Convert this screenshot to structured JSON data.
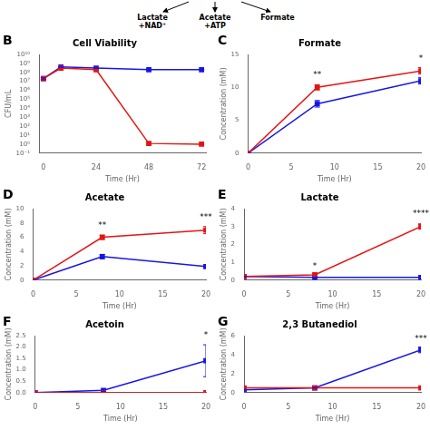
{
  "annotations": [
    "Lactate\n+NAD⁺",
    "Acetate\n+ATP",
    "Formate"
  ],
  "chart_data": [
    {
      "type": "line",
      "title": "Cell Viability",
      "x_label": "Time (Hr)",
      "y_label": "CFU/mL",
      "x": [
        0,
        8,
        24,
        48,
        72
      ],
      "series": [
        {
          "color": "#e61414",
          "marker": "square",
          "values": [
            20000000.0,
            300000000.0,
            200000000.0,
            1.2,
            1.0
          ],
          "errors": [
            5000000.0,
            40000000.0,
            30000000.0,
            0.3,
            0.2
          ]
        },
        {
          "color": "#1616e8",
          "marker": "square",
          "values": [
            20000000.0,
            400000000.0,
            300000000.0,
            200000000.0,
            200000000.0
          ],
          "errors": [
            5000000.0,
            30000000.0,
            30000000.0,
            20000000.0,
            20000000.0
          ]
        }
      ],
      "log": "y",
      "xlim": [
        -2,
        74
      ],
      "xticks": [
        0,
        24,
        48,
        72
      ],
      "ylim": [
        0.1,
        10000000000.0
      ],
      "yticks": [
        {
          "value": 0.1,
          "label": "10⁻¹"
        },
        {
          "value": 1,
          "label": "10⁰"
        },
        {
          "value": 10,
          "label": "10¹"
        },
        {
          "value": 100,
          "label": "10²"
        },
        {
          "value": 1000,
          "label": "10³"
        },
        {
          "value": 10000,
          "label": "10⁴"
        },
        {
          "value": 100000,
          "label": "10⁵"
        },
        {
          "value": 1000000,
          "label": "10⁶"
        },
        {
          "value": 10000000,
          "label": "10⁷"
        },
        {
          "value": 100000000,
          "label": "10⁸"
        },
        {
          "value": 1000000000,
          "label": "10⁹"
        },
        {
          "value": 10000000000,
          "label": "10¹⁰"
        }
      ],
      "grid": false,
      "annotations": [
        {
          "text": "B"
        }
      ]
    },
    {
      "type": "line",
      "title": "Formate",
      "x_label": "Time (Hr)",
      "y_label": "Concentration (mM)",
      "x": [
        0,
        8,
        20
      ],
      "series": [
        {
          "color": "#e61414",
          "marker": "square",
          "values": [
            0,
            10.0,
            12.5
          ],
          "errors": [
            0,
            0.4,
            0.5
          ]
        },
        {
          "color": "#1616e8",
          "marker": "square",
          "values": [
            0,
            7.5,
            11.0
          ],
          "errors": [
            0,
            0.5,
            0.5
          ]
        }
      ],
      "xlim": [
        0,
        20
      ],
      "xticks": [
        0,
        5,
        10,
        15,
        20
      ],
      "ylim": [
        0,
        15
      ],
      "yticks": [
        0,
        5,
        10,
        15
      ],
      "grid": false,
      "annotations": [
        {
          "text": "C"
        },
        {
          "text": "**",
          "x": 8,
          "y": 11.2
        },
        {
          "text": "*",
          "x": 20,
          "y": 13.8
        }
      ]
    },
    {
      "type": "line",
      "title": "Acetate",
      "x_label": "Time (Hr)",
      "y_label": "Concentration (mM)",
      "x": [
        0,
        8,
        20
      ],
      "series": [
        {
          "color": "#e61414",
          "marker": "square",
          "values": [
            0,
            6.0,
            7.0
          ],
          "errors": [
            0,
            0.3,
            0.5
          ]
        },
        {
          "color": "#1616e8",
          "marker": "square",
          "values": [
            0,
            3.3,
            1.9
          ],
          "errors": [
            0,
            0.3,
            0.2
          ]
        }
      ],
      "xlim": [
        0,
        20
      ],
      "xticks": [
        0,
        5,
        10,
        15,
        20
      ],
      "ylim": [
        0,
        10
      ],
      "yticks": [
        0,
        2,
        4,
        6,
        8,
        10
      ],
      "grid": false,
      "annotations": [
        {
          "text": "D"
        },
        {
          "text": "**",
          "x": 8,
          "y": 7.0
        },
        {
          "text": "***",
          "x": 20,
          "y": 8.2
        }
      ]
    },
    {
      "type": "line",
      "title": "Lactate",
      "x_label": "Time (Hr)",
      "y_label": "Concentration (mM)",
      "x": [
        0,
        8,
        20
      ],
      "series": [
        {
          "color": "#e61414",
          "marker": "square",
          "values": [
            0.2,
            0.3,
            3.0
          ],
          "errors": [
            0.02,
            0.05,
            0.15
          ]
        },
        {
          "color": "#1616e8",
          "marker": "square",
          "values": [
            0.2,
            0.15,
            0.15
          ],
          "errors": [
            0.02,
            0.02,
            0.02
          ]
        }
      ],
      "xlim": [
        0,
        20
      ],
      "xticks": [
        0,
        5,
        10,
        15,
        20
      ],
      "ylim": [
        0,
        4
      ],
      "yticks": [
        0,
        1,
        2,
        3,
        4
      ],
      "grid": false,
      "annotations": [
        {
          "text": "E"
        },
        {
          "text": "*",
          "x": 8,
          "y": 0.55
        },
        {
          "text": "****",
          "x": 20,
          "y": 3.5
        }
      ]
    },
    {
      "type": "line",
      "title": "Acetoin",
      "x_label": "Time (Hr)",
      "y_label": "Concentration (mM)",
      "x": [
        0,
        8,
        20
      ],
      "series": [
        {
          "color": "#e61414",
          "marker": "square",
          "values": [
            0,
            0,
            0
          ],
          "errors": [
            0,
            0,
            0
          ]
        },
        {
          "color": "#1616e8",
          "marker": "square",
          "values": [
            0,
            0.1,
            1.4
          ],
          "errors": [
            0,
            0.05,
            0.7
          ]
        }
      ],
      "xlim": [
        0,
        20
      ],
      "xticks": [
        0,
        5,
        10,
        15,
        20
      ],
      "ylim": [
        0,
        2.5
      ],
      "yticks": [
        {
          "value": 0,
          "label": "0.0"
        },
        0.5,
        {
          "value": 1,
          "label": "1.0"
        },
        1.5,
        {
          "value": 2,
          "label": "2.0"
        },
        2.5
      ],
      "grid": false,
      "annotations": [
        {
          "text": "F"
        },
        {
          "text": "*",
          "x": 20,
          "y": 2.35
        }
      ]
    },
    {
      "type": "line",
      "title": "2,3 Butanediol",
      "x_label": "Time (Hr)",
      "y_label": "Concentration (mM)",
      "x": [
        0,
        8,
        20
      ],
      "series": [
        {
          "color": "#e61414",
          "marker": "square",
          "values": [
            0.5,
            0.5,
            0.5
          ],
          "errors": [
            0.05,
            0.05,
            0.05
          ]
        },
        {
          "color": "#1616e8",
          "marker": "square",
          "values": [
            0.3,
            0.5,
            4.5
          ],
          "errors": [
            0.05,
            0.05,
            0.3
          ]
        }
      ],
      "xlim": [
        0,
        20
      ],
      "xticks": [
        0,
        5,
        10,
        15,
        20
      ],
      "ylim": [
        0,
        6
      ],
      "yticks": [
        0,
        2,
        4,
        6
      ],
      "grid": false,
      "annotations": [
        {
          "text": "G"
        },
        {
          "text": "***",
          "x": 20,
          "y": 5.2
        }
      ]
    }
  ]
}
